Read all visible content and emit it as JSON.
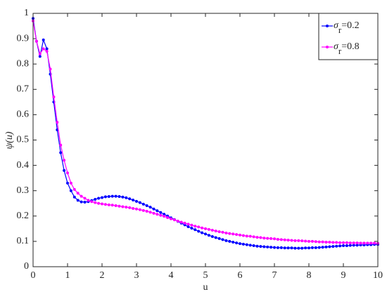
{
  "chart_data": {
    "type": "line",
    "x_label": "u",
    "y_label": "ψ(u)",
    "x": [
      0,
      0.1,
      0.2,
      0.3,
      0.4,
      0.5,
      0.6,
      0.7,
      0.8,
      0.9,
      1,
      1.1,
      1.2,
      1.3,
      1.4,
      1.5,
      1.6,
      1.7,
      1.8,
      1.9,
      2,
      2.1,
      2.2,
      2.3,
      2.4,
      2.5,
      2.6,
      2.7,
      2.8,
      2.9,
      3,
      3.1,
      3.2,
      3.3,
      3.4,
      3.5,
      3.6,
      3.7,
      3.8,
      3.9,
      4,
      4.1,
      4.2,
      4.3,
      4.4,
      4.5,
      4.6,
      4.7,
      4.8,
      4.9,
      5,
      5.1,
      5.2,
      5.3,
      5.4,
      5.5,
      5.6,
      5.7,
      5.8,
      5.9,
      6,
      6.1,
      6.2,
      6.3,
      6.4,
      6.5,
      6.6,
      6.7,
      6.8,
      6.9,
      7,
      7.1,
      7.2,
      7.3,
      7.4,
      7.5,
      7.6,
      7.7,
      7.8,
      7.9,
      8,
      8.1,
      8.2,
      8.3,
      8.4,
      8.5,
      8.6,
      8.7,
      8.8,
      8.9,
      9,
      9.1,
      9.2,
      9.3,
      9.4,
      9.5,
      9.6,
      9.7,
      9.8,
      9.9,
      10
    ],
    "series": [
      {
        "name": "σr=0.2",
        "color": "#0000ff",
        "values": [
          0.98,
          0.89,
          0.83,
          0.895,
          0.86,
          0.76,
          0.65,
          0.54,
          0.45,
          0.38,
          0.33,
          0.3,
          0.275,
          0.262,
          0.256,
          0.255,
          0.257,
          0.261,
          0.266,
          0.27,
          0.273,
          0.276,
          0.277,
          0.278,
          0.278,
          0.277,
          0.275,
          0.272,
          0.268,
          0.263,
          0.258,
          0.253,
          0.247,
          0.241,
          0.235,
          0.228,
          0.221,
          0.214,
          0.207,
          0.2,
          0.193,
          0.186,
          0.179,
          0.172,
          0.165,
          0.158,
          0.152,
          0.146,
          0.14,
          0.134,
          0.129,
          0.124,
          0.119,
          0.115,
          0.111,
          0.107,
          0.103,
          0.1,
          0.097,
          0.094,
          0.091,
          0.089,
          0.087,
          0.085,
          0.083,
          0.081,
          0.08,
          0.079,
          0.078,
          0.077,
          0.076,
          0.075,
          0.075,
          0.074,
          0.074,
          0.074,
          0.073,
          0.073,
          0.073,
          0.074,
          0.074,
          0.075,
          0.075,
          0.076,
          0.077,
          0.078,
          0.079,
          0.08,
          0.081,
          0.082,
          0.083,
          0.083,
          0.084,
          0.085,
          0.085,
          0.086,
          0.086,
          0.087,
          0.087,
          0.088,
          0.088
        ]
      },
      {
        "name": "σr=0.8",
        "color": "#ff00ff",
        "values": [
          0.97,
          0.89,
          0.84,
          0.86,
          0.85,
          0.78,
          0.67,
          0.57,
          0.48,
          0.42,
          0.37,
          0.33,
          0.305,
          0.29,
          0.278,
          0.27,
          0.262,
          0.257,
          0.253,
          0.25,
          0.248,
          0.246,
          0.244,
          0.243,
          0.241,
          0.239,
          0.237,
          0.235,
          0.233,
          0.23,
          0.228,
          0.225,
          0.222,
          0.219,
          0.215,
          0.211,
          0.207,
          0.203,
          0.199,
          0.194,
          0.189,
          0.185,
          0.18,
          0.176,
          0.172,
          0.168,
          0.164,
          0.16,
          0.157,
          0.153,
          0.15,
          0.147,
          0.144,
          0.141,
          0.138,
          0.136,
          0.133,
          0.131,
          0.129,
          0.127,
          0.125,
          0.123,
          0.121,
          0.12,
          0.118,
          0.116,
          0.115,
          0.113,
          0.112,
          0.111,
          0.11,
          0.108,
          0.107,
          0.106,
          0.105,
          0.104,
          0.103,
          0.103,
          0.102,
          0.101,
          0.1,
          0.1,
          0.099,
          0.098,
          0.098,
          0.097,
          0.097,
          0.096,
          0.096,
          0.095,
          0.095,
          0.095,
          0.094,
          0.094,
          0.094,
          0.093,
          0.093,
          0.093,
          0.093,
          0.093,
          0.092
        ]
      }
    ],
    "xlim": [
      0,
      10
    ],
    "xticks": [
      0,
      1,
      2,
      3,
      4,
      5,
      6,
      7,
      8,
      9,
      10
    ],
    "ylim": [
      0,
      1
    ],
    "yticks": [
      0,
      0.1,
      0.2,
      0.3,
      0.4,
      0.5,
      0.6,
      0.7,
      0.8,
      0.9,
      1
    ],
    "grid": false,
    "legend": "upper right"
  }
}
